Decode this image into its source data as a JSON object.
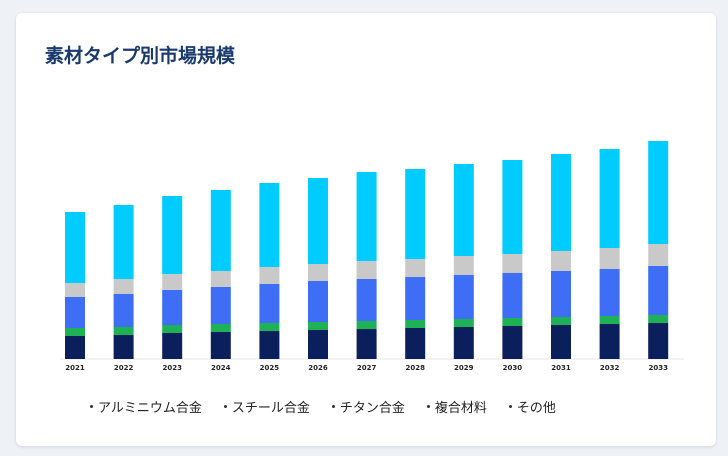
{
  "chart_data": {
    "type": "bar",
    "stacked": true,
    "title": "素材タイプ別市場規模",
    "categories": [
      "2021",
      "2022",
      "2023",
      "2024",
      "2025",
      "2026",
      "2027",
      "2028",
      "2029",
      "2030",
      "2031",
      "2032",
      "2033"
    ],
    "series": [
      {
        "name": "アルミニウム合金",
        "color": "#0a1f5c",
        "values": [
          23,
          24,
          26,
          27,
          28,
          29,
          30,
          31,
          32,
          33,
          34,
          35,
          36
        ]
      },
      {
        "name": "スチール合金",
        "color": "#1fb155",
        "values": [
          8,
          8,
          8,
          8,
          8,
          8,
          8,
          8,
          8,
          8,
          8,
          8,
          8
        ]
      },
      {
        "name": "チタン合金",
        "color": "#3d6ef5",
        "values": [
          31,
          33,
          35,
          37,
          39,
          41,
          42,
          43,
          44,
          45,
          46,
          47,
          49
        ]
      },
      {
        "name": "複合材料",
        "color": "#c9c9c9",
        "values": [
          14,
          15,
          16,
          16,
          17,
          17,
          18,
          18,
          19,
          19,
          20,
          21,
          22
        ]
      },
      {
        "name": "その他",
        "color": "#00ccff",
        "values": [
          71,
          74,
          78,
          81,
          84,
          86,
          89,
          90,
          92,
          94,
          97,
          99,
          103
        ]
      }
    ],
    "legend_position": "bottom",
    "grid": false
  }
}
